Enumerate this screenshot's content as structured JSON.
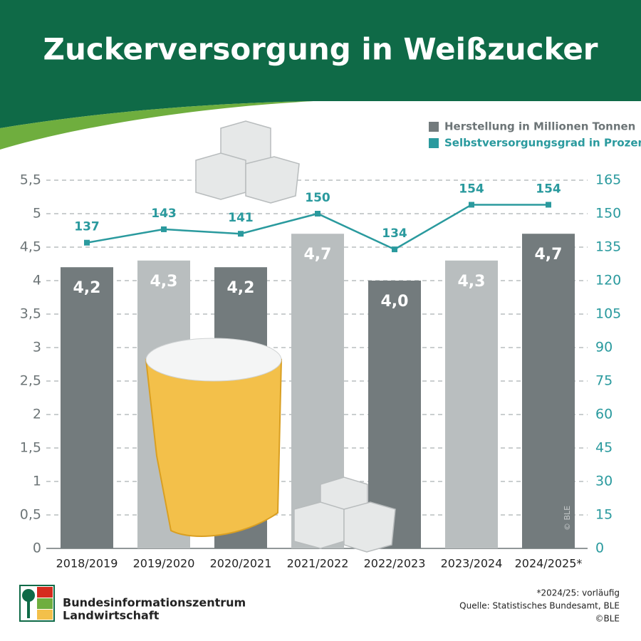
{
  "chart_data": {
    "type": "bar",
    "title": "Zuckerversorgung in Weißzucker",
    "categories": [
      "2018/2019",
      "2019/2020",
      "2020/2021",
      "2021/2022",
      "2022/2023",
      "2023/2024",
      "2024/2025*"
    ],
    "series": [
      {
        "name": "Herstellung in Millionen Tonnen",
        "type": "bar",
        "color": "#737b7d",
        "colors": [
          "#737b7d",
          "#b9bebf",
          "#737b7d",
          "#b9bebf",
          "#737b7d",
          "#b9bebf",
          "#737b7d"
        ],
        "values": [
          4.2,
          4.3,
          4.2,
          4.7,
          4.0,
          4.3,
          4.7
        ],
        "value_labels": [
          "4,2",
          "4,3",
          "4,2",
          "4,7",
          "4,0",
          "4,3",
          "4,7"
        ]
      },
      {
        "name": "Selbstversorgungsgrad in Prozent",
        "type": "line",
        "axis": "y2",
        "color": "#2a9a9e",
        "values": [
          137,
          143,
          141,
          150,
          134,
          154,
          154
        ]
      }
    ],
    "ylim": [
      0,
      5.5
    ],
    "yticks": [
      0,
      {
        "value": 0.5,
        "label": "0,5"
      },
      1,
      {
        "value": 1.5,
        "label": "1,5"
      },
      2,
      {
        "value": 2.5,
        "label": "2,5"
      },
      3,
      {
        "value": 3.5,
        "label": "3,5"
      },
      4,
      {
        "value": 4.5,
        "label": "4,5"
      },
      5,
      {
        "value": 5.5,
        "label": "5,5"
      }
    ],
    "y2lim": [
      0,
      165
    ],
    "y2ticks": [
      0,
      15,
      30,
      45,
      60,
      75,
      90,
      105,
      120,
      135,
      150,
      165
    ],
    "grid": true,
    "legend": "top-right",
    "watermark": "© BLE",
    "footnote": "*2024/25: vorläufig",
    "source": "Quelle: Statistisches Bundesamt, BLE",
    "copyright": "©BLE",
    "logo_text": [
      "Bundesinformationszentrum",
      "Landwirtschaft"
    ]
  }
}
